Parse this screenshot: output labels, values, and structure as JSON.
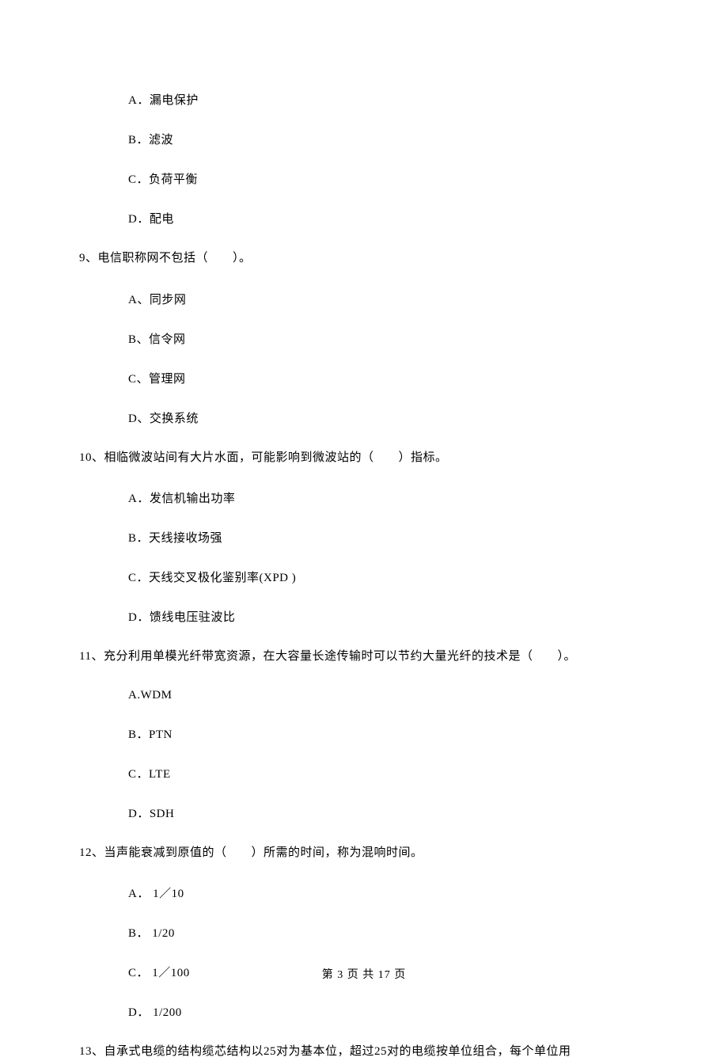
{
  "q8_options": {
    "a": "A．漏电保护",
    "b": "B．滤波",
    "c": "C．负荷平衡",
    "d": "D．配电"
  },
  "q9": {
    "text": "9、电信职称网不包括（　　）。",
    "a": "A、同步网",
    "b": "B、信令网",
    "c": "C、管理网",
    "d": "D、交换系统"
  },
  "q10": {
    "text": "10、相临微波站间有大片水面，可能影响到微波站的（　　）指标。",
    "a": "A．发信机输出功率",
    "b": "B．天线接收场强",
    "c": "C．天线交叉极化鉴别率(XPD )",
    "d": "D．馈线电压驻波比"
  },
  "q11": {
    "text": "11、充分利用单模光纤带宽资源，在大容量长途传输时可以节约大量光纤的技术是（　　）。",
    "a": "A.WDM",
    "b": "B．PTN",
    "c": "C．LTE",
    "d": "D．SDH"
  },
  "q12": {
    "text": "12、当声能衰减到原值的（　　）所需的时间，称为混响时间。",
    "a": "A．  1／10",
    "b": "B．  1/20",
    "c": "C．  1／100",
    "d": "D．  1/200"
  },
  "q13": {
    "text": "13、自承式电缆的结构缆芯结构以25对为基本位，超过25对的电缆按单位组合，每个单位用"
  },
  "footer": "第 3 页 共 17 页"
}
